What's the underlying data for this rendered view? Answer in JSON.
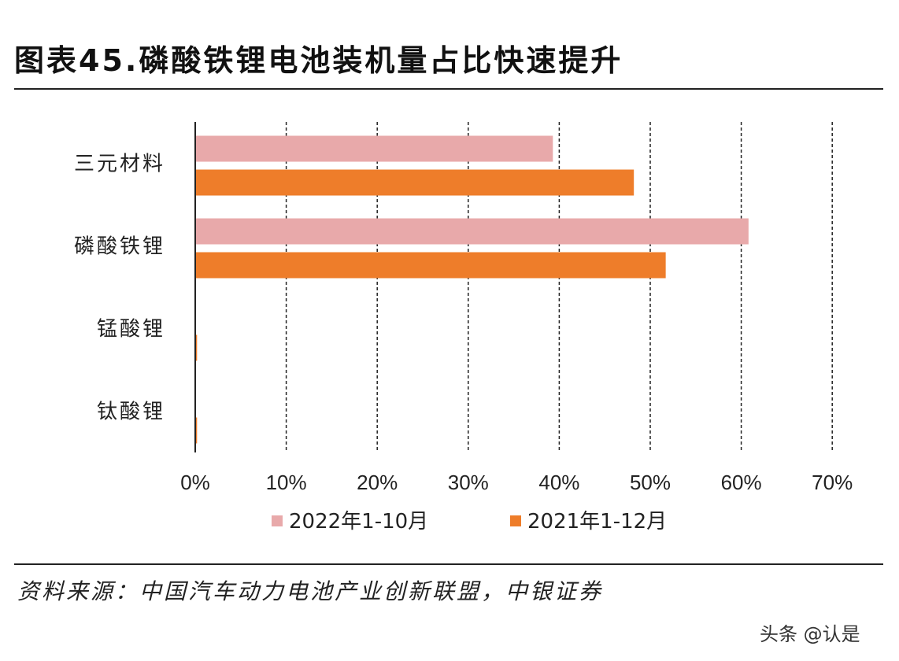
{
  "title": "图表45.磷酸铁锂电池装机量占比快速提升",
  "source": "资料来源：中国汽车动力电池产业创新联盟，中银证券",
  "watermark": "头条 @认是",
  "chart_data": {
    "type": "bar",
    "orientation": "horizontal",
    "title": "",
    "categories": [
      "三元材料",
      "磷酸铁锂",
      "锰酸锂",
      "钛酸锂"
    ],
    "series": [
      {
        "name": "2022年1-10月",
        "color": "#E8A9AA",
        "values": [
          39.3,
          60.8,
          0.0,
          0.0
        ]
      },
      {
        "name": "2021年1-12月",
        "color": "#EE7D2A",
        "values": [
          48.2,
          51.7,
          0.2,
          0.2
        ]
      }
    ],
    "xlim": [
      0,
      70
    ],
    "xticks": [
      "0%",
      "10%",
      "20%",
      "30%",
      "40%",
      "50%",
      "60%",
      "70%"
    ],
    "grid": "vertical dashed",
    "legend": "bottom"
  }
}
